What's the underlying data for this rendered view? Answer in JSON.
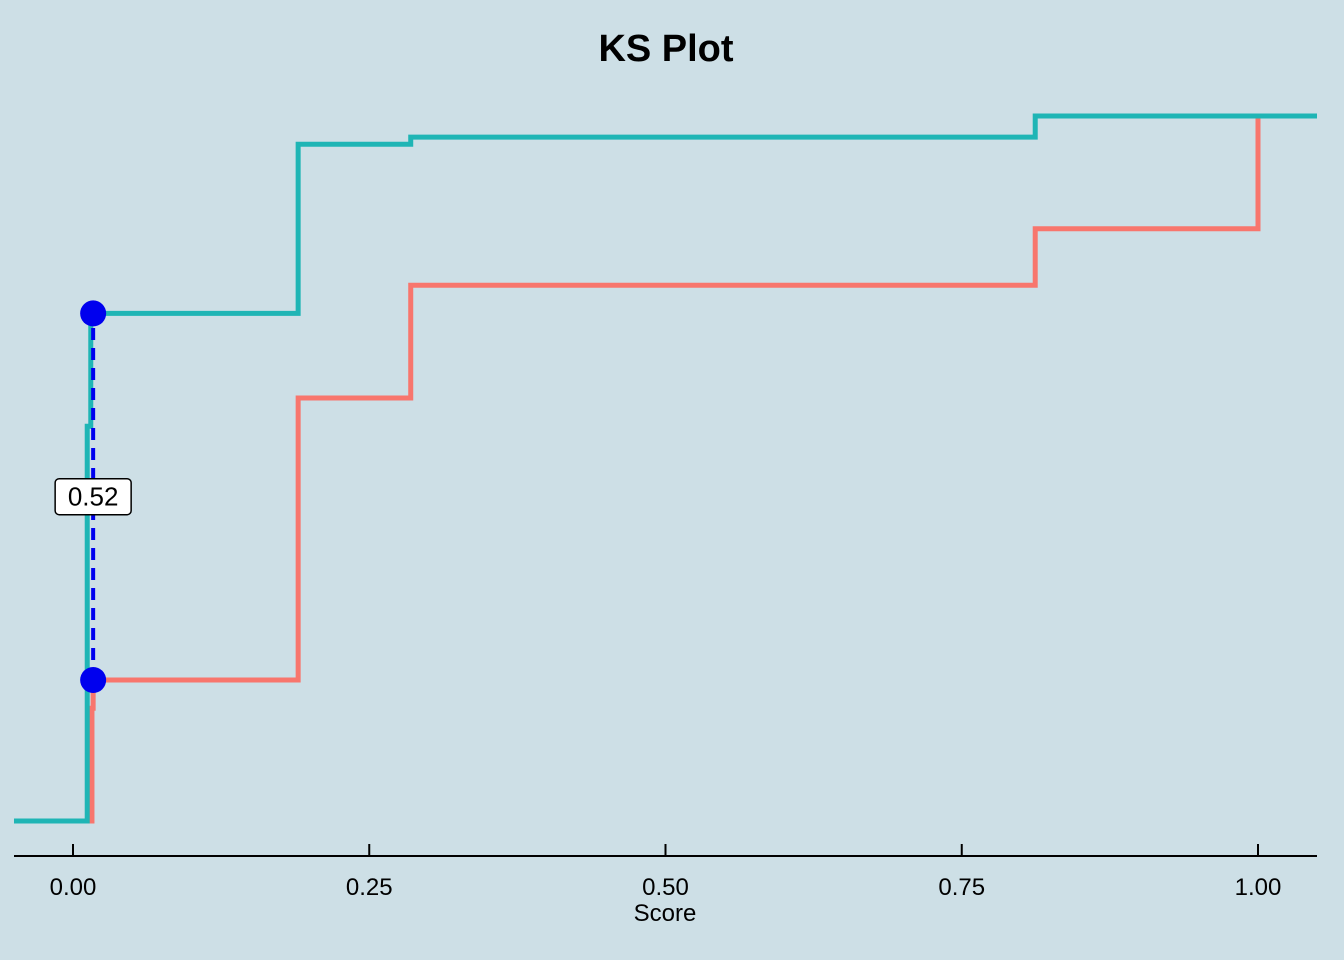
{
  "chart_data": {
    "type": "line",
    "subtype": "step-ecdf",
    "title": "KS Plot",
    "xlabel": "Score",
    "ylabel": "",
    "xlim": [
      -0.05,
      1.05
    ],
    "ylim": [
      0,
      1
    ],
    "x_ticks": [
      0,
      0.25,
      0.5,
      0.75,
      1.0
    ],
    "x_tick_labels": [
      "0.00",
      "0.25",
      "0.50",
      "0.75",
      "1.00"
    ],
    "y_axis_shown": false,
    "grid": false,
    "legend": "none",
    "series": [
      {
        "color": "#F8766D",
        "steps": [
          {
            "x": 0.012,
            "y": 0.0
          },
          {
            "x": 0.016,
            "y": 0.16
          },
          {
            "x": 0.017,
            "y": 0.2
          },
          {
            "x": 0.19,
            "y": 0.6
          },
          {
            "x": 0.285,
            "y": 0.76
          },
          {
            "x": 0.812,
            "y": 0.84
          },
          {
            "x": 1.0,
            "y": 1.0
          }
        ]
      },
      {
        "color": "#1FB5B5",
        "steps": [
          {
            "x": 0.012,
            "y": 0.56
          },
          {
            "x": 0.015,
            "y": 0.72
          },
          {
            "x": 0.017,
            "y": 0.72
          },
          {
            "x": 0.19,
            "y": 0.96
          },
          {
            "x": 0.285,
            "y": 0.97
          },
          {
            "x": 0.812,
            "y": 1.0
          }
        ]
      }
    ],
    "ks_statistic": {
      "label": "0.52",
      "x": 0.017,
      "y_low": 0.2,
      "y_high": 0.72,
      "line_color": "#0000EE",
      "point_color": "#0000EE"
    }
  }
}
